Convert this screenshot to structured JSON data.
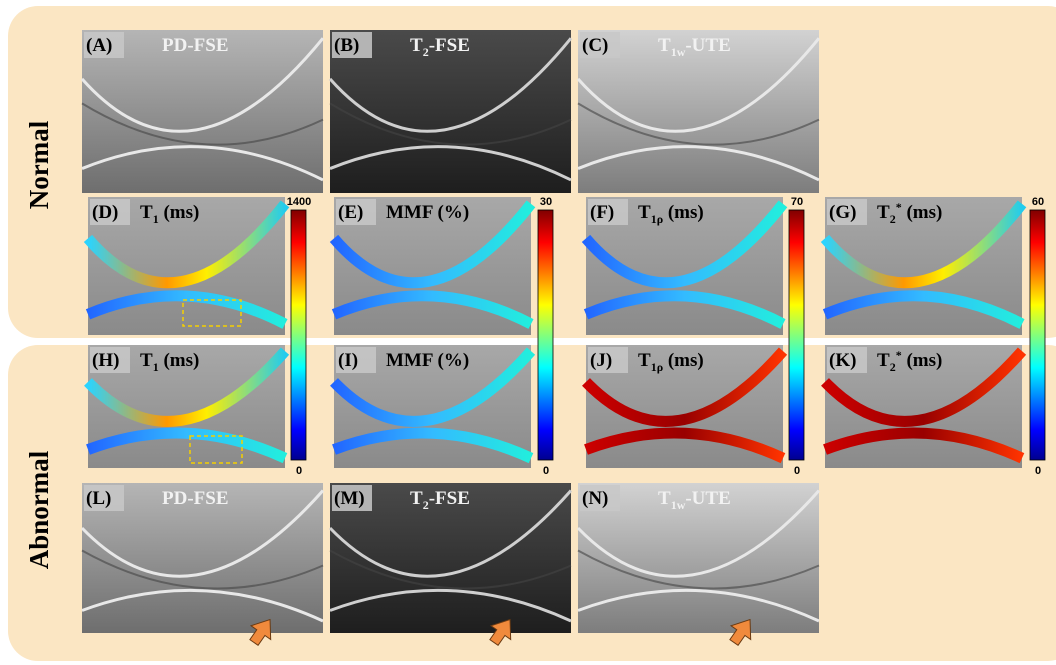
{
  "row_labels": [
    "Normal",
    "Abnormal"
  ],
  "panels": [
    {
      "letter": "(A)",
      "title": {
        "main": "PD-FSE"
      }
    },
    {
      "letter": "(B)",
      "title": {
        "main": "T",
        "sub": "2",
        "rest": "-FSE"
      }
    },
    {
      "letter": "(C)",
      "title": {
        "main": "T",
        "sub": "1w",
        "rest": "-UTE"
      }
    },
    {
      "letter": "(D)",
      "title": {
        "main": "T",
        "sub": "1",
        "rest": " (ms)"
      }
    },
    {
      "letter": "(E)",
      "title": {
        "main": "MMF (%)"
      }
    },
    {
      "letter": "(F)",
      "title": {
        "main": "T",
        "sub": "1ρ",
        "rest": " (ms)"
      }
    },
    {
      "letter": "(G)",
      "title": {
        "main": "T",
        "sub": "2",
        "sup": "*",
        "rest": " (ms)"
      }
    },
    {
      "letter": "(H)",
      "title": {
        "main": "T",
        "sub": "1",
        "rest": " (ms)"
      }
    },
    {
      "letter": "(I)",
      "title": {
        "main": "MMF (%)"
      }
    },
    {
      "letter": "(J)",
      "title": {
        "main": "T",
        "sub": "1ρ",
        "rest": " (ms)"
      }
    },
    {
      "letter": "(K)",
      "title": {
        "main": "T",
        "sub": "2",
        "sup": "*",
        "rest": " (ms)"
      }
    },
    {
      "letter": "(L)",
      "title": {
        "main": "PD-FSE"
      }
    },
    {
      "letter": "(M)",
      "title": {
        "main": "T",
        "sub": "2",
        "rest": "-FSE"
      }
    },
    {
      "letter": "(N)",
      "title": {
        "main": "T",
        "sub": "1w",
        "rest": "-UTE"
      }
    }
  ],
  "colorbars": [
    {
      "max": 1400,
      "min": 0
    },
    {
      "max": 30,
      "min": 0
    },
    {
      "max": 70,
      "min": 0
    },
    {
      "max": 60,
      "min": 0
    }
  ]
}
